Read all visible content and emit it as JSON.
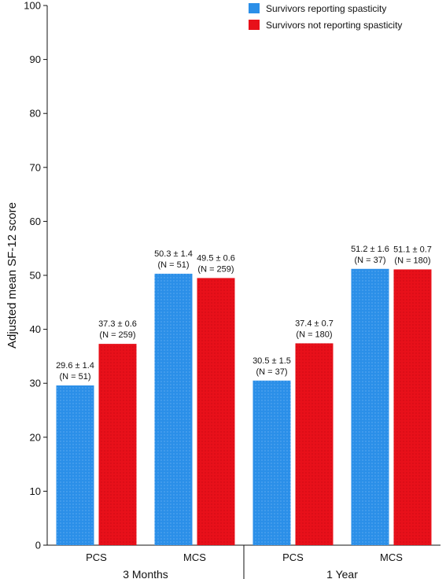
{
  "chart_data": {
    "type": "bar",
    "ylabel": "Adjusted mean SF-12 score",
    "ylim": [
      0,
      100
    ],
    "yticks": [
      0,
      10,
      20,
      30,
      40,
      50,
      60,
      70,
      80,
      90,
      100
    ],
    "groups": [
      "3 Months",
      "1 Year"
    ],
    "categories": [
      "PCS",
      "MCS",
      "PCS",
      "MCS"
    ],
    "category_group": [
      0,
      0,
      1,
      1
    ],
    "legend_position": "top-right",
    "series": [
      {
        "name": "Survivors reporting spasticity",
        "color": "#2b8fe8",
        "values": [
          29.6,
          50.3,
          30.5,
          51.2
        ],
        "labels": [
          [
            "29.6 ± 1.4",
            "(N = 51)"
          ],
          [
            "50.3 ± 1.4",
            "(N = 51)"
          ],
          [
            "30.5 ± 1.5",
            "(N = 37)"
          ],
          [
            "51.2 ± 1.6",
            "(N = 37)"
          ]
        ]
      },
      {
        "name": "Survivors not reporting spasticity",
        "color": "#e8101a",
        "values": [
          37.3,
          49.5,
          37.4,
          51.1
        ],
        "labels": [
          [
            "37.3 ± 0.6",
            "(N = 259)"
          ],
          [
            "49.5 ± 0.6",
            "(N = 259)"
          ],
          [
            "37.4 ± 0.7",
            "(N = 180)"
          ],
          [
            "51.1 ± 0.7",
            "(N = 180)"
          ]
        ]
      }
    ]
  }
}
